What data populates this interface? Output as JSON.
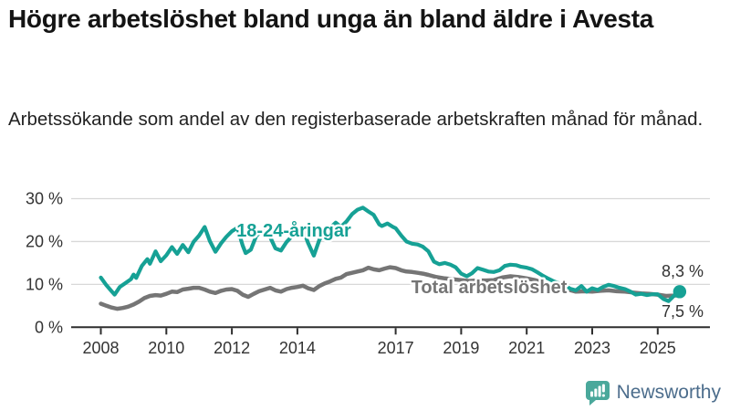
{
  "title": "Högre arbetslöshet bland unga än bland äldre i Avesta",
  "subtitle": "Arbetssökande som andel av den registerbaserade arbetskraften månad för månad.",
  "branding": {
    "logo_text": "Newsworthy",
    "logo_icon": "bar-chart-speech-bubble-icon"
  },
  "chart_data": {
    "type": "line",
    "title": "Högre arbetslöshet bland unga än bland äldre i Avesta",
    "subtitle": "Arbetssökande som andel av den registerbaserade arbetskraften månad för månad.",
    "unit": "%",
    "grid": "horizontal",
    "ylim": [
      0,
      30
    ],
    "xlim": [
      2008,
      2025.7
    ],
    "y_ticks": [
      {
        "value": 0,
        "label": "0 %"
      },
      {
        "value": 10,
        "label": "10 %"
      },
      {
        "value": 20,
        "label": "20 %"
      },
      {
        "value": 30,
        "label": "30 %"
      }
    ],
    "x_ticks": [
      {
        "value": 2008,
        "label": "2008"
      },
      {
        "value": 2010,
        "label": "2010"
      },
      {
        "value": 2012,
        "label": "2012"
      },
      {
        "value": 2014,
        "label": "2014"
      },
      {
        "value": 2017,
        "label": "2017"
      },
      {
        "value": 2019,
        "label": "2019"
      },
      {
        "value": 2021,
        "label": "2021"
      },
      {
        "value": 2023,
        "label": "2023"
      },
      {
        "value": 2025,
        "label": "2025"
      }
    ],
    "series": [
      {
        "name": "18-24-åringar",
        "color": "#16a195",
        "end_label": "8,3 %",
        "end_value": 8.3,
        "end_dot": true,
        "points": [
          [
            2008.0,
            11.6
          ],
          [
            2008.17,
            9.8
          ],
          [
            2008.33,
            8.4
          ],
          [
            2008.42,
            7.6
          ],
          [
            2008.58,
            9.4
          ],
          [
            2008.75,
            10.3
          ],
          [
            2008.92,
            11.2
          ],
          [
            2009.0,
            12.3
          ],
          [
            2009.08,
            11.5
          ],
          [
            2009.25,
            14.3
          ],
          [
            2009.42,
            15.9
          ],
          [
            2009.5,
            14.8
          ],
          [
            2009.67,
            17.7
          ],
          [
            2009.83,
            15.4
          ],
          [
            2010.0,
            16.8
          ],
          [
            2010.17,
            18.7
          ],
          [
            2010.33,
            17.1
          ],
          [
            2010.5,
            19.2
          ],
          [
            2010.67,
            17.5
          ],
          [
            2010.83,
            19.9
          ],
          [
            2011.0,
            21.4
          ],
          [
            2011.17,
            23.4
          ],
          [
            2011.33,
            20.1
          ],
          [
            2011.5,
            17.6
          ],
          [
            2011.67,
            19.6
          ],
          [
            2011.83,
            21.1
          ],
          [
            2012.0,
            22.4
          ],
          [
            2012.17,
            23.2
          ],
          [
            2012.33,
            19.1
          ],
          [
            2012.42,
            17.3
          ],
          [
            2012.58,
            18.1
          ],
          [
            2012.75,
            21.4
          ],
          [
            2012.92,
            22.4
          ],
          [
            2013.0,
            22.7
          ],
          [
            2013.17,
            21.0
          ],
          [
            2013.33,
            18.4
          ],
          [
            2013.5,
            17.9
          ],
          [
            2013.67,
            19.9
          ],
          [
            2013.83,
            21.2
          ],
          [
            2014.0,
            22.0
          ],
          [
            2014.17,
            22.9
          ],
          [
            2014.33,
            19.6
          ],
          [
            2014.5,
            16.7
          ],
          [
            2014.67,
            20.4
          ],
          [
            2014.83,
            22.2
          ],
          [
            2015.0,
            23.2
          ],
          [
            2015.17,
            24.4
          ],
          [
            2015.33,
            23.4
          ],
          [
            2015.5,
            24.7
          ],
          [
            2015.67,
            26.4
          ],
          [
            2015.83,
            27.4
          ],
          [
            2016.0,
            27.9
          ],
          [
            2016.17,
            27.0
          ],
          [
            2016.33,
            26.2
          ],
          [
            2016.5,
            24.0
          ],
          [
            2016.58,
            23.6
          ],
          [
            2016.75,
            24.2
          ],
          [
            2016.92,
            23.4
          ],
          [
            2017.0,
            23.1
          ],
          [
            2017.17,
            21.4
          ],
          [
            2017.33,
            20.0
          ],
          [
            2017.5,
            19.5
          ],
          [
            2017.67,
            19.3
          ],
          [
            2017.83,
            18.8
          ],
          [
            2018.0,
            17.7
          ],
          [
            2018.17,
            15.3
          ],
          [
            2018.33,
            14.7
          ],
          [
            2018.5,
            15.0
          ],
          [
            2018.67,
            14.6
          ],
          [
            2018.83,
            14.0
          ],
          [
            2019.0,
            12.5
          ],
          [
            2019.17,
            11.9
          ],
          [
            2019.33,
            12.6
          ],
          [
            2019.5,
            13.8
          ],
          [
            2019.67,
            13.4
          ],
          [
            2019.83,
            13.0
          ],
          [
            2020.0,
            12.9
          ],
          [
            2020.17,
            13.3
          ],
          [
            2020.33,
            14.3
          ],
          [
            2020.5,
            14.6
          ],
          [
            2020.67,
            14.5
          ],
          [
            2020.83,
            14.1
          ],
          [
            2021.0,
            13.9
          ],
          [
            2021.17,
            13.5
          ],
          [
            2021.33,
            12.8
          ],
          [
            2021.5,
            12.0
          ],
          [
            2021.67,
            11.3
          ],
          [
            2021.83,
            10.7
          ],
          [
            2022.0,
            10.2
          ],
          [
            2022.17,
            9.7
          ],
          [
            2022.33,
            9.0
          ],
          [
            2022.5,
            8.6
          ],
          [
            2022.67,
            9.6
          ],
          [
            2022.83,
            8.3
          ],
          [
            2023.0,
            9.1
          ],
          [
            2023.17,
            8.7
          ],
          [
            2023.33,
            9.4
          ],
          [
            2023.5,
            9.9
          ],
          [
            2023.67,
            9.6
          ],
          [
            2023.83,
            9.2
          ],
          [
            2024.0,
            8.9
          ],
          [
            2024.17,
            8.3
          ],
          [
            2024.33,
            7.6
          ],
          [
            2024.5,
            7.8
          ],
          [
            2024.67,
            7.5
          ],
          [
            2024.83,
            7.7
          ],
          [
            2025.0,
            7.7
          ],
          [
            2025.17,
            6.6
          ],
          [
            2025.33,
            6.1
          ],
          [
            2025.5,
            7.4
          ],
          [
            2025.67,
            8.3
          ]
        ]
      },
      {
        "name": "Total arbetslöshet",
        "color": "#757575",
        "end_label": "7,5 %",
        "end_value": 7.5,
        "end_dot": false,
        "points": [
          [
            2008.0,
            5.5
          ],
          [
            2008.17,
            5.0
          ],
          [
            2008.33,
            4.6
          ],
          [
            2008.5,
            4.3
          ],
          [
            2008.67,
            4.5
          ],
          [
            2008.83,
            4.8
          ],
          [
            2009.0,
            5.3
          ],
          [
            2009.17,
            6.0
          ],
          [
            2009.33,
            6.8
          ],
          [
            2009.5,
            7.3
          ],
          [
            2009.67,
            7.5
          ],
          [
            2009.83,
            7.4
          ],
          [
            2010.0,
            7.8
          ],
          [
            2010.17,
            8.3
          ],
          [
            2010.33,
            8.2
          ],
          [
            2010.5,
            8.8
          ],
          [
            2010.67,
            9.0
          ],
          [
            2010.83,
            9.2
          ],
          [
            2011.0,
            9.2
          ],
          [
            2011.17,
            8.8
          ],
          [
            2011.33,
            8.3
          ],
          [
            2011.5,
            8.0
          ],
          [
            2011.67,
            8.5
          ],
          [
            2011.83,
            8.8
          ],
          [
            2012.0,
            8.9
          ],
          [
            2012.17,
            8.5
          ],
          [
            2012.33,
            7.6
          ],
          [
            2012.5,
            7.1
          ],
          [
            2012.67,
            7.8
          ],
          [
            2012.83,
            8.4
          ],
          [
            2013.0,
            8.8
          ],
          [
            2013.17,
            9.2
          ],
          [
            2013.33,
            8.6
          ],
          [
            2013.5,
            8.3
          ],
          [
            2013.67,
            8.9
          ],
          [
            2013.83,
            9.2
          ],
          [
            2014.0,
            9.4
          ],
          [
            2014.17,
            9.7
          ],
          [
            2014.33,
            9.1
          ],
          [
            2014.5,
            8.7
          ],
          [
            2014.67,
            9.6
          ],
          [
            2014.83,
            10.2
          ],
          [
            2015.0,
            10.7
          ],
          [
            2015.17,
            11.3
          ],
          [
            2015.33,
            11.6
          ],
          [
            2015.5,
            12.4
          ],
          [
            2015.67,
            12.7
          ],
          [
            2015.83,
            13.0
          ],
          [
            2016.0,
            13.3
          ],
          [
            2016.17,
            13.9
          ],
          [
            2016.33,
            13.5
          ],
          [
            2016.5,
            13.3
          ],
          [
            2016.67,
            13.7
          ],
          [
            2016.83,
            14.0
          ],
          [
            2017.0,
            13.8
          ],
          [
            2017.17,
            13.3
          ],
          [
            2017.33,
            13.0
          ],
          [
            2017.5,
            12.9
          ],
          [
            2017.67,
            12.7
          ],
          [
            2017.83,
            12.5
          ],
          [
            2018.0,
            12.2
          ],
          [
            2018.25,
            11.7
          ],
          [
            2018.5,
            11.4
          ],
          [
            2018.75,
            11.2
          ],
          [
            2019.0,
            11.0
          ],
          [
            2019.25,
            10.8
          ],
          [
            2019.5,
            10.9
          ],
          [
            2019.75,
            10.9
          ],
          [
            2020.0,
            11.0
          ],
          [
            2020.25,
            11.6
          ],
          [
            2020.5,
            11.9
          ],
          [
            2020.75,
            11.7
          ],
          [
            2021.0,
            11.4
          ],
          [
            2021.25,
            11.0
          ],
          [
            2021.5,
            10.4
          ],
          [
            2021.75,
            9.8
          ],
          [
            2022.0,
            9.3
          ],
          [
            2022.25,
            8.8
          ],
          [
            2022.5,
            8.3
          ],
          [
            2022.75,
            8.4
          ],
          [
            2023.0,
            8.3
          ],
          [
            2023.25,
            8.5
          ],
          [
            2023.5,
            8.6
          ],
          [
            2023.75,
            8.4
          ],
          [
            2024.0,
            8.3
          ],
          [
            2024.25,
            8.1
          ],
          [
            2024.5,
            7.9
          ],
          [
            2024.75,
            7.8
          ],
          [
            2025.0,
            7.6
          ],
          [
            2025.25,
            7.3
          ],
          [
            2025.5,
            7.4
          ],
          [
            2025.67,
            7.5
          ]
        ]
      }
    ]
  }
}
